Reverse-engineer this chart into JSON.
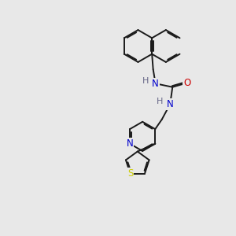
{
  "bg": "#e8e8e8",
  "bc": "#1a1a1a",
  "nc": "#0000cc",
  "oc": "#cc0000",
  "sc": "#cccc00",
  "lw": 1.4,
  "sep": 0.05,
  "fs": 8.5,
  "xlim": [
    0,
    10
  ],
  "ylim": [
    0,
    10
  ]
}
